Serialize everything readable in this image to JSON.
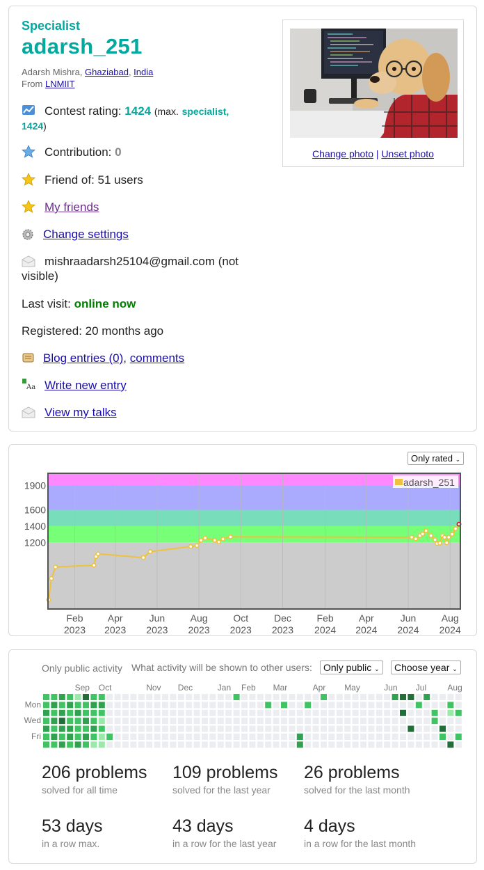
{
  "profile": {
    "rank": "Specialist",
    "handle": "adarsh_251",
    "full_name": "Adarsh Mishra",
    "city": "Ghaziabad",
    "country": "India",
    "from_label": "From",
    "organization": "LNMIIT",
    "contest_rating_label": "Contest rating:",
    "contest_rating": "1424",
    "max_prefix": "(max.",
    "max_rank": "specialist,",
    "max_rating": "1424",
    "max_suffix": ")",
    "contribution_label": "Contribution:",
    "contribution": "0",
    "friend_of": "Friend of: 51 users",
    "my_friends": "My friends",
    "change_settings": "Change settings",
    "email": "mishraadarsh25104@gmail.com (not visible)",
    "last_visit_label": "Last visit:",
    "last_visit": "online now",
    "registered": "Registered: 20 months ago",
    "blog_entries": "Blog entries (0)",
    "comments": "comments",
    "write_new_entry": "Write new entry",
    "view_my_talks": "View my talks",
    "change_photo": "Change photo",
    "unset_photo": "Unset photo",
    "photo_separator": "|"
  },
  "icons": {
    "rating": "rating-chart-icon",
    "contribution": "star-blue-icon",
    "friends": "star-gold-icon",
    "settings": "gear-icon",
    "email": "envelope-icon",
    "blog": "scroll-icon",
    "write": "write-entry-icon",
    "talks": "envelope-icon"
  },
  "colors": {
    "accent_teal": "#03a89e",
    "online_green": "#008000",
    "link": "#1a0dab",
    "line": "#edc240"
  },
  "rating_filter": "Only rated",
  "chart_data": {
    "type": "line",
    "legend": "adarsh_251",
    "legend_position": "top-right",
    "yticks": [
      1200,
      1400,
      1600,
      1900
    ],
    "xticks": [
      {
        "month": "Feb",
        "year": "2023",
        "x": "2023-02-01"
      },
      {
        "month": "Apr",
        "year": "2023",
        "x": "2023-04-01"
      },
      {
        "month": "Jun",
        "year": "2023",
        "x": "2023-06-01"
      },
      {
        "month": "Aug",
        "year": "2023",
        "x": "2023-08-01"
      },
      {
        "month": "Oct",
        "year": "2023",
        "x": "2023-10-01"
      },
      {
        "month": "Dec",
        "year": "2023",
        "x": "2023-12-01"
      },
      {
        "month": "Feb",
        "year": "2024",
        "x": "2024-02-01"
      },
      {
        "month": "Apr",
        "year": "2024",
        "x": "2024-04-01"
      },
      {
        "month": "Jun",
        "year": "2024",
        "x": "2024-06-01"
      },
      {
        "month": "Aug",
        "year": "2024",
        "x": "2024-08-01"
      }
    ],
    "xlim": [
      "2022-12-24",
      "2024-08-16"
    ],
    "ylim": [
      380,
      2050
    ],
    "bands": [
      {
        "from": 0,
        "to": 1200,
        "color": "#cccccc"
      },
      {
        "from": 1200,
        "to": 1400,
        "color": "#77ff77"
      },
      {
        "from": 1400,
        "to": 1600,
        "color": "#77ddbb"
      },
      {
        "from": 1600,
        "to": 1900,
        "color": "#aaaaff"
      },
      {
        "from": 1900,
        "to": 2100,
        "color": "#ff88ff"
      }
    ],
    "grid": true,
    "points": [
      {
        "x": "2022-12-25",
        "y": 493
      },
      {
        "x": "2022-12-29",
        "y": 756
      },
      {
        "x": "2023-01-04",
        "y": 897
      },
      {
        "x": "2023-03-01",
        "y": 918
      },
      {
        "x": "2023-03-04",
        "y": 1025
      },
      {
        "x": "2023-03-07",
        "y": 1059
      },
      {
        "x": "2023-05-12",
        "y": 1013
      },
      {
        "x": "2023-05-22",
        "y": 1086
      },
      {
        "x": "2023-07-20",
        "y": 1149
      },
      {
        "x": "2023-07-29",
        "y": 1160
      },
      {
        "x": "2023-08-04",
        "y": 1225
      },
      {
        "x": "2023-08-10",
        "y": 1253
      },
      {
        "x": "2023-08-24",
        "y": 1225
      },
      {
        "x": "2023-08-30",
        "y": 1205
      },
      {
        "x": "2023-09-05",
        "y": 1240
      },
      {
        "x": "2023-09-16",
        "y": 1268
      },
      {
        "x": "2024-06-06",
        "y": 1263
      },
      {
        "x": "2024-06-12",
        "y": 1243
      },
      {
        "x": "2024-06-18",
        "y": 1283
      },
      {
        "x": "2024-06-22",
        "y": 1303
      },
      {
        "x": "2024-06-27",
        "y": 1343
      },
      {
        "x": "2024-07-04",
        "y": 1283
      },
      {
        "x": "2024-07-10",
        "y": 1233
      },
      {
        "x": "2024-07-13",
        "y": 1185
      },
      {
        "x": "2024-07-17",
        "y": 1190
      },
      {
        "x": "2024-07-21",
        "y": 1283
      },
      {
        "x": "2024-07-24",
        "y": 1263
      },
      {
        "x": "2024-07-27",
        "y": 1195
      },
      {
        "x": "2024-07-30",
        "y": 1263
      },
      {
        "x": "2024-08-04",
        "y": 1300
      },
      {
        "x": "2024-08-09",
        "y": 1368
      },
      {
        "x": "2024-08-14",
        "y": 1424
      }
    ]
  },
  "activity": {
    "only_public_label": "Only public activity",
    "question": "What activity will be shown to other users:",
    "visibility_select": "Only public",
    "year_select": "Choose year",
    "months": [
      "Sep",
      "Oct",
      "Nov",
      "Dec",
      "Jan",
      "Feb",
      "Mar",
      "Apr",
      "May",
      "Jun",
      "Jul",
      "Aug"
    ],
    "days": [
      "Mon",
      "Wed",
      "Fri"
    ],
    "heatmap_colors": [
      "#ebedf0",
      "#9be9a8",
      "#40c463",
      "#30a14e",
      "#216e39"
    ],
    "active_cells": [
      [
        0,
        0,
        2
      ],
      [
        0,
        1,
        2
      ],
      [
        0,
        2,
        3
      ],
      [
        0,
        3,
        2
      ],
      [
        0,
        4,
        3
      ],
      [
        0,
        5,
        2
      ],
      [
        0,
        6,
        2
      ],
      [
        1,
        0,
        2
      ],
      [
        1,
        1,
        3
      ],
      [
        1,
        2,
        2
      ],
      [
        1,
        3,
        3
      ],
      [
        1,
        4,
        2
      ],
      [
        1,
        5,
        3
      ],
      [
        1,
        6,
        2
      ],
      [
        2,
        0,
        3
      ],
      [
        2,
        1,
        2
      ],
      [
        2,
        2,
        3
      ],
      [
        2,
        3,
        4
      ],
      [
        2,
        4,
        3
      ],
      [
        2,
        5,
        2
      ],
      [
        2,
        6,
        3
      ],
      [
        3,
        0,
        2
      ],
      [
        3,
        1,
        3
      ],
      [
        3,
        2,
        2
      ],
      [
        3,
        3,
        2
      ],
      [
        3,
        4,
        3
      ],
      [
        3,
        5,
        3
      ],
      [
        3,
        6,
        2
      ],
      [
        4,
        0,
        1
      ],
      [
        4,
        1,
        2
      ],
      [
        4,
        2,
        3
      ],
      [
        4,
        3,
        2
      ],
      [
        4,
        4,
        2
      ],
      [
        4,
        5,
        2
      ],
      [
        4,
        6,
        3
      ],
      [
        5,
        0,
        4
      ],
      [
        5,
        1,
        2
      ],
      [
        5,
        2,
        2
      ],
      [
        5,
        3,
        3
      ],
      [
        5,
        4,
        2
      ],
      [
        5,
        5,
        3
      ],
      [
        5,
        6,
        2
      ],
      [
        6,
        0,
        2
      ],
      [
        6,
        1,
        3
      ],
      [
        6,
        2,
        2
      ],
      [
        6,
        3,
        2
      ],
      [
        6,
        4,
        3
      ],
      [
        6,
        5,
        2
      ],
      [
        6,
        6,
        1
      ],
      [
        7,
        0,
        2
      ],
      [
        7,
        1,
        3
      ],
      [
        7,
        2,
        2
      ],
      [
        7,
        3,
        1
      ],
      [
        7,
        4,
        2
      ],
      [
        7,
        5,
        1
      ],
      [
        7,
        6,
        1
      ],
      [
        8,
        5,
        2
      ],
      [
        24,
        0,
        2
      ],
      [
        28,
        1,
        2
      ],
      [
        30,
        1,
        2
      ],
      [
        33,
        1,
        2
      ],
      [
        32,
        5,
        3
      ],
      [
        32,
        6,
        3
      ],
      [
        35,
        0,
        2
      ],
      [
        44,
        0,
        3
      ],
      [
        45,
        0,
        4
      ],
      [
        45,
        2,
        4
      ],
      [
        46,
        0,
        4
      ],
      [
        46,
        4,
        4
      ],
      [
        47,
        1,
        2
      ],
      [
        48,
        0,
        3
      ],
      [
        49,
        2,
        2
      ],
      [
        49,
        3,
        2
      ],
      [
        50,
        4,
        4
      ],
      [
        50,
        5,
        2
      ],
      [
        51,
        1,
        2
      ],
      [
        51,
        2,
        1
      ],
      [
        51,
        6,
        4
      ],
      [
        52,
        2,
        2
      ],
      [
        52,
        5,
        2
      ],
      [
        54,
        0,
        4
      ],
      [
        55,
        0,
        4
      ],
      [
        55,
        2,
        4
      ],
      [
        56,
        0,
        4
      ]
    ]
  },
  "stats": [
    {
      "value": "206 problems",
      "caption": "solved for all time"
    },
    {
      "value": "109 problems",
      "caption": "solved for the last year"
    },
    {
      "value": "26 problems",
      "caption": "solved for the last month"
    },
    {
      "value": "53 days",
      "caption": "in a row max."
    },
    {
      "value": "43 days",
      "caption": "in a row for the last year"
    },
    {
      "value": "4 days",
      "caption": "in a row for the last month"
    }
  ]
}
